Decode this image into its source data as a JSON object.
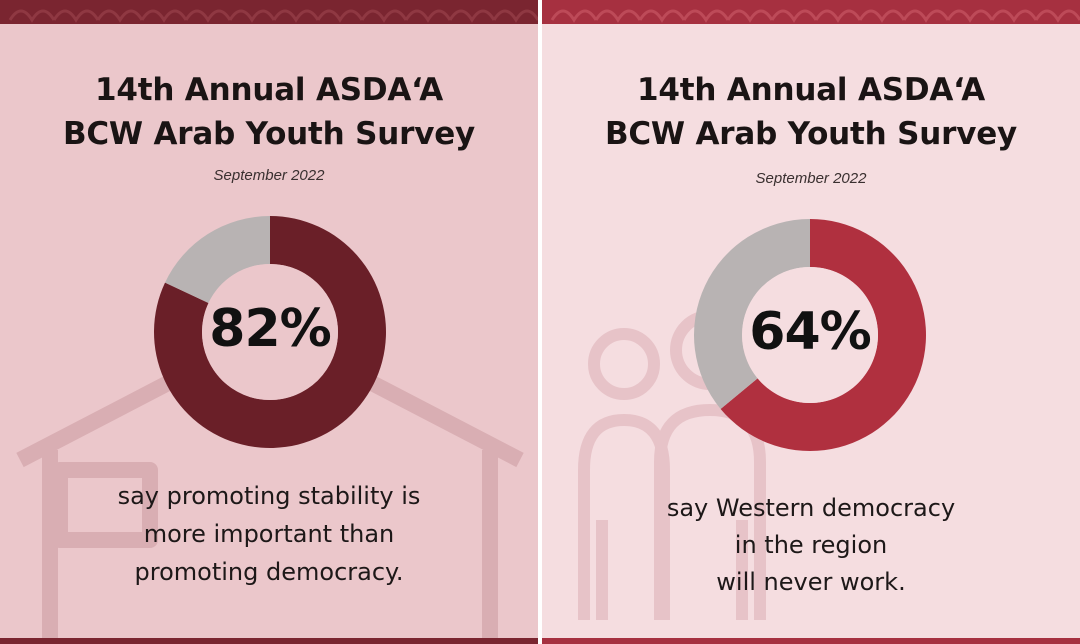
{
  "chart_data": [
    {
      "type": "pie",
      "title_lines": [
        "14th Annual ASDA‘A",
        "BCW Arab Youth Survey"
      ],
      "subtitle": "September 2022",
      "values": [
        82,
        18
      ],
      "center_label": "82%",
      "caption_lines": [
        "say promoting stability is",
        "more important than",
        "promoting democracy."
      ],
      "colors": [
        "#6a1f28",
        "#b8b3b3"
      ]
    },
    {
      "type": "pie",
      "title_lines": [
        "14th Annual ASDA‘A",
        "BCW Arab Youth Survey"
      ],
      "subtitle": "September 2022",
      "values": [
        64,
        36
      ],
      "center_label": "64%",
      "caption_lines": [
        "say Western democracy",
        "in the region",
        "will never work."
      ],
      "colors": [
        "#b0303f",
        "#b8b3b3"
      ]
    }
  ],
  "theme": {
    "left_background": "#ebc7cb",
    "right_background": "#f5dde0",
    "left_band": "#7a2530",
    "right_band": "#a63040",
    "watermark_left": "#d9aeb3",
    "watermark_right": "#e7c3c8",
    "left_watermark_icon": "house-icon",
    "right_watermark_icon": "people-icon"
  }
}
